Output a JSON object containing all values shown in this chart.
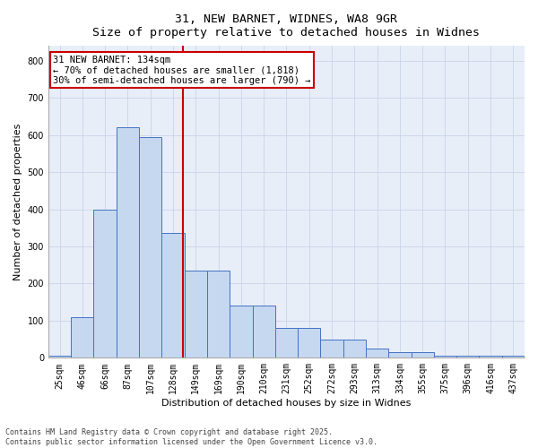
{
  "title_line1": "31, NEW BARNET, WIDNES, WA8 9GR",
  "title_line2": "Size of property relative to detached houses in Widnes",
  "xlabel": "Distribution of detached houses by size in Widnes",
  "ylabel": "Number of detached properties",
  "categories": [
    "25sqm",
    "46sqm",
    "66sqm",
    "87sqm",
    "107sqm",
    "128sqm",
    "149sqm",
    "169sqm",
    "190sqm",
    "210sqm",
    "231sqm",
    "252sqm",
    "272sqm",
    "293sqm",
    "313sqm",
    "334sqm",
    "355sqm",
    "375sqm",
    "396sqm",
    "416sqm",
    "437sqm"
  ],
  "values": [
    5,
    110,
    400,
    620,
    595,
    335,
    235,
    235,
    140,
    140,
    80,
    80,
    50,
    50,
    25,
    15,
    15,
    5,
    5,
    5,
    5
  ],
  "bar_color": "#c5d8f0",
  "bar_edge_color": "#4472c4",
  "vline_x": 5.45,
  "vline_color": "#cc0000",
  "annotation_text": "31 NEW BARNET: 134sqm\n← 70% of detached houses are smaller (1,818)\n30% of semi-detached houses are larger (790) →",
  "annotation_box_color": "#ffffff",
  "annotation_box_edge_color": "#cc0000",
  "ylim": [
    0,
    840
  ],
  "yticks": [
    0,
    100,
    200,
    300,
    400,
    500,
    600,
    700,
    800
  ],
  "grid_color": "#c8d4e8",
  "background_color": "#e8eef8",
  "footer_line1": "Contains HM Land Registry data © Crown copyright and database right 2025.",
  "footer_line2": "Contains public sector information licensed under the Open Government Licence v3.0.",
  "title_fontsize": 9.5,
  "axis_label_fontsize": 8,
  "tick_fontsize": 7,
  "annotation_fontsize": 7.5,
  "footer_fontsize": 6
}
